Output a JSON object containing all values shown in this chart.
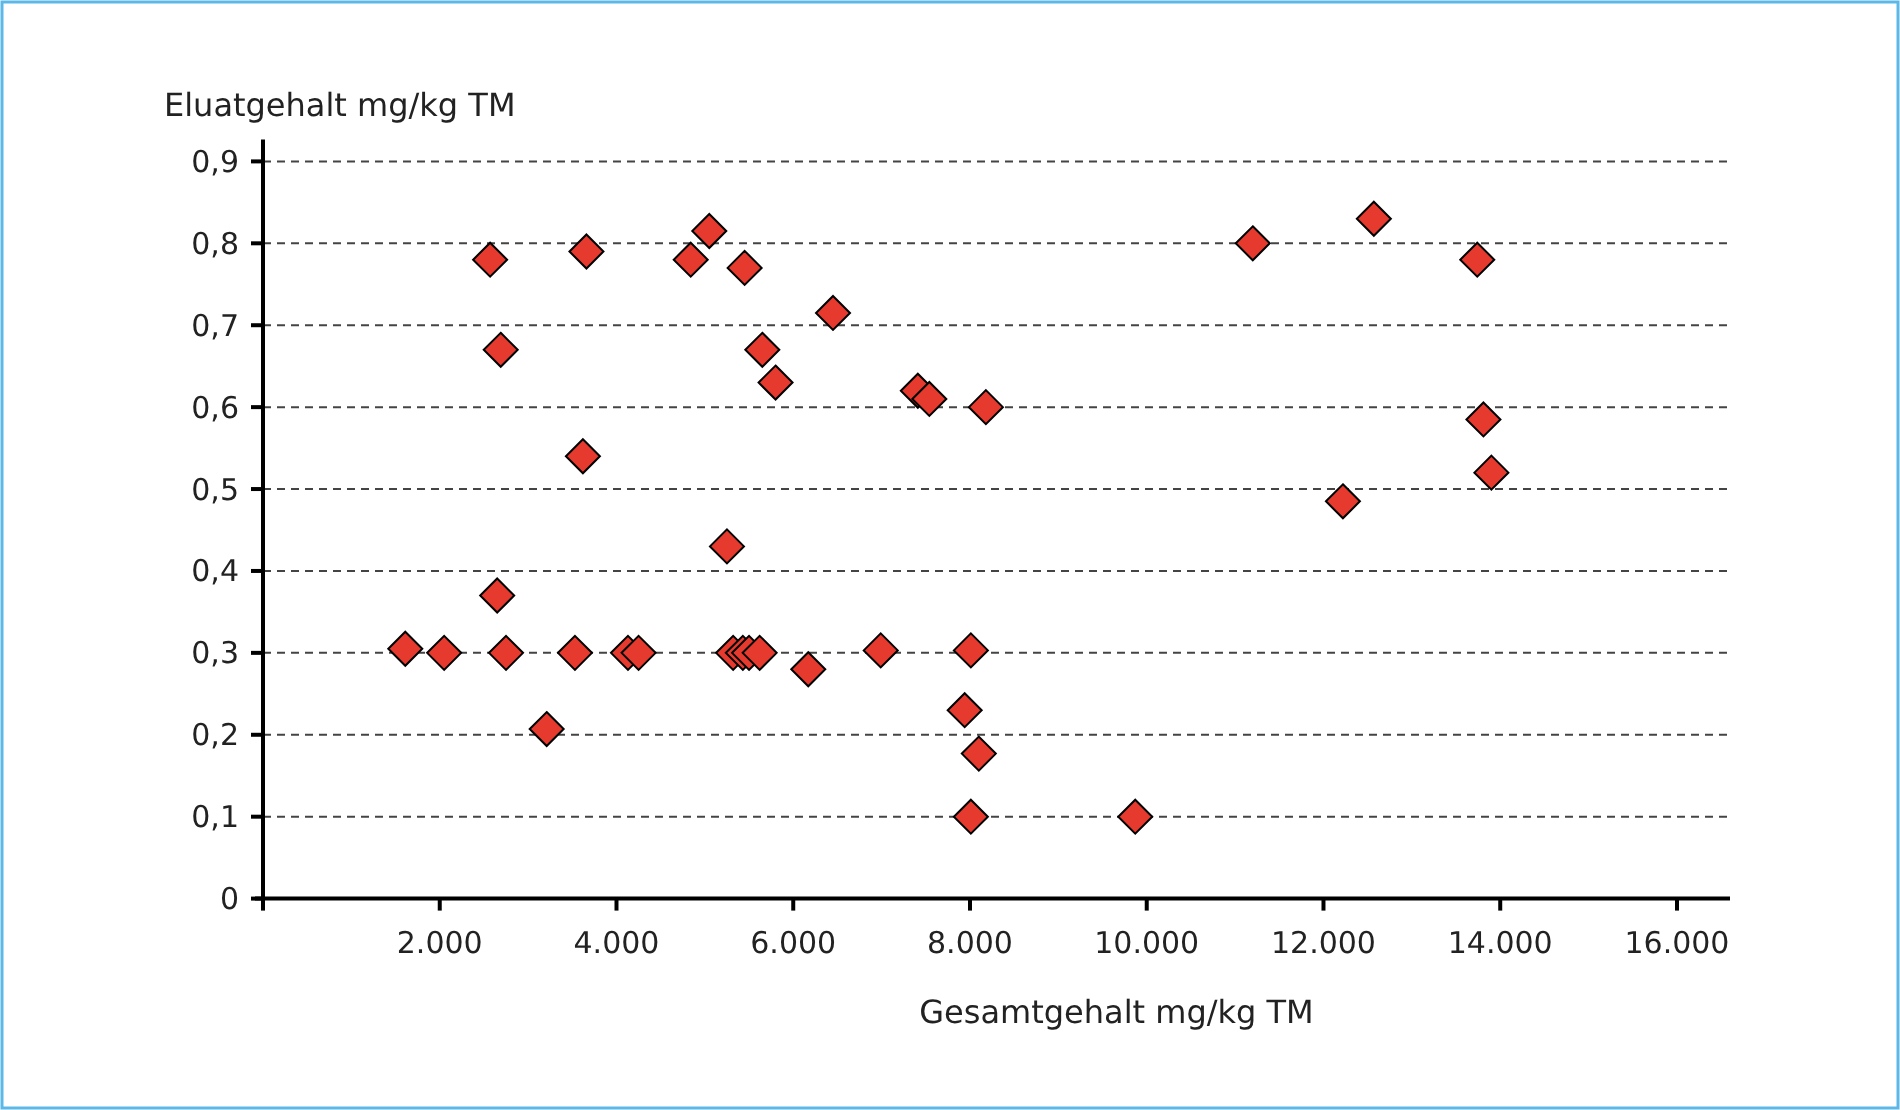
{
  "chart_data": {
    "type": "scatter",
    "xlabel": "Gesamtgehalt mg/kg TM",
    "ylabel": "Eluatgehalt mg/kg TM",
    "xlim": [
      0,
      16600
    ],
    "ylim": [
      0,
      0.9
    ],
    "xticks": [
      {
        "value": 0,
        "label": null
      },
      {
        "value": 2000,
        "label": "2.000"
      },
      {
        "value": 4000,
        "label": "4.000"
      },
      {
        "value": 6000,
        "label": "6.000"
      },
      {
        "value": 8000,
        "label": "8.000"
      },
      {
        "value": 10000,
        "label": "10.000"
      },
      {
        "value": 12000,
        "label": "12.000"
      },
      {
        "value": 14000,
        "label": "14.000"
      },
      {
        "value": 16000,
        "label": "16.000"
      }
    ],
    "yticks": [
      0,
      {
        "value": 0.1,
        "label": "0,1"
      },
      {
        "value": 0.2,
        "label": "0,2"
      },
      {
        "value": 0.3,
        "label": "0,3"
      },
      {
        "value": 0.4,
        "label": "0,4"
      },
      {
        "value": 0.5,
        "label": "0,5"
      },
      {
        "value": 0.6,
        "label": "0,6"
      },
      {
        "value": 0.7,
        "label": "0,7"
      },
      {
        "value": 0.8,
        "label": "0,8"
      },
      {
        "value": 0.9,
        "label": "0,9"
      }
    ],
    "grid": "y",
    "marker": "diamond",
    "series": [
      {
        "color": "#e63a2e",
        "x": [
          2570,
          2690,
          2650,
          3660,
          3620,
          4840,
          5050,
          5450,
          5650,
          5800,
          5250,
          6450,
          7410,
          7540,
          8180,
          11200,
          12570,
          13740,
          13810,
          13900,
          12220,
          1610,
          2050,
          2750,
          3530,
          3210,
          4130,
          4250,
          5320,
          5430,
          5500,
          5620,
          6170,
          6990,
          8010,
          7940,
          8100,
          8010,
          9870
        ],
        "values": [
          0.78,
          0.67,
          0.37,
          0.79,
          0.54,
          0.78,
          0.815,
          0.77,
          0.67,
          0.63,
          0.43,
          0.715,
          0.62,
          0.61,
          0.6,
          0.8,
          0.83,
          0.78,
          0.585,
          0.52,
          0.485,
          0.305,
          0.3,
          0.3,
          0.3,
          0.207,
          0.3,
          0.3,
          0.3,
          0.3,
          0.3,
          0.3,
          0.28,
          0.303,
          0.303,
          0.23,
          0.177,
          0.1,
          0.1
        ]
      }
    ]
  }
}
